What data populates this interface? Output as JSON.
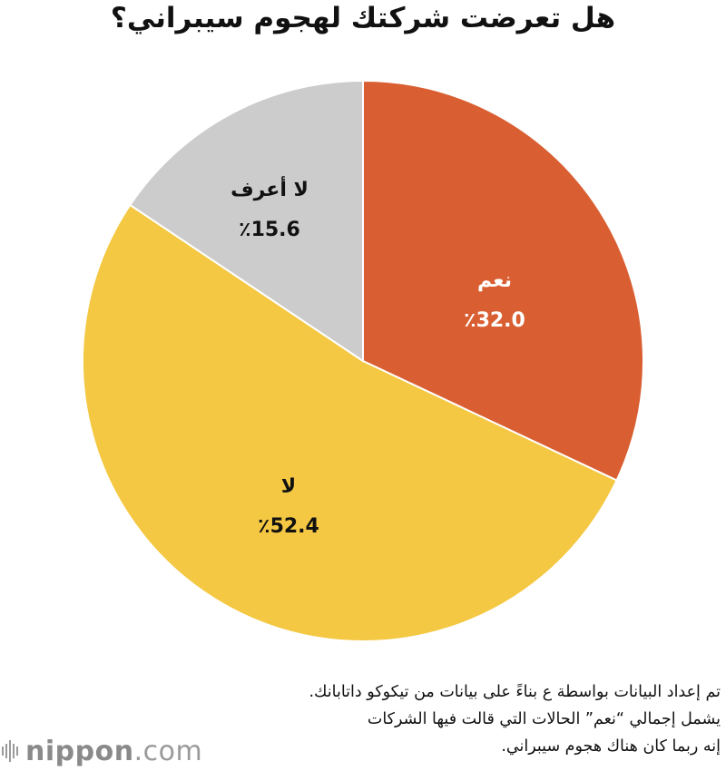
{
  "title": "هل تعرضت شركتك لهجوم سيبراني؟",
  "chart_data": {
    "type": "pie",
    "title": "هل تعرضت شركتك لهجوم سيبراني؟",
    "start": "top (12 o'clock), clockwise",
    "slices": [
      {
        "label": "نعم",
        "value": 32.0,
        "value_text": "٪32.0",
        "color": "#D95F32",
        "text_color": "#ffffff"
      },
      {
        "label": "لا",
        "value": 52.4,
        "value_text": "٪52.4",
        "color": "#F4C842",
        "text_color": "#111111"
      },
      {
        "label": "لا أعرف",
        "value": 15.6,
        "value_text": "٪15.6",
        "color": "#CCCCCC",
        "text_color": "#111111"
      }
    ]
  },
  "notes": {
    "line1": "تم إعداد البيانات بواسطة ع بناءً على بيانات من تيكوكو داتابانك.",
    "line2": "يشمل إجمالي “نعم” الحالات التي قالت فيها الشركات",
    "line3": "إنه ربما كان هناك هجوم سيبراني."
  },
  "logo": {
    "bold": "nippon",
    "rest": ".com",
    "icon": "nippon-logo-bars-icon"
  }
}
